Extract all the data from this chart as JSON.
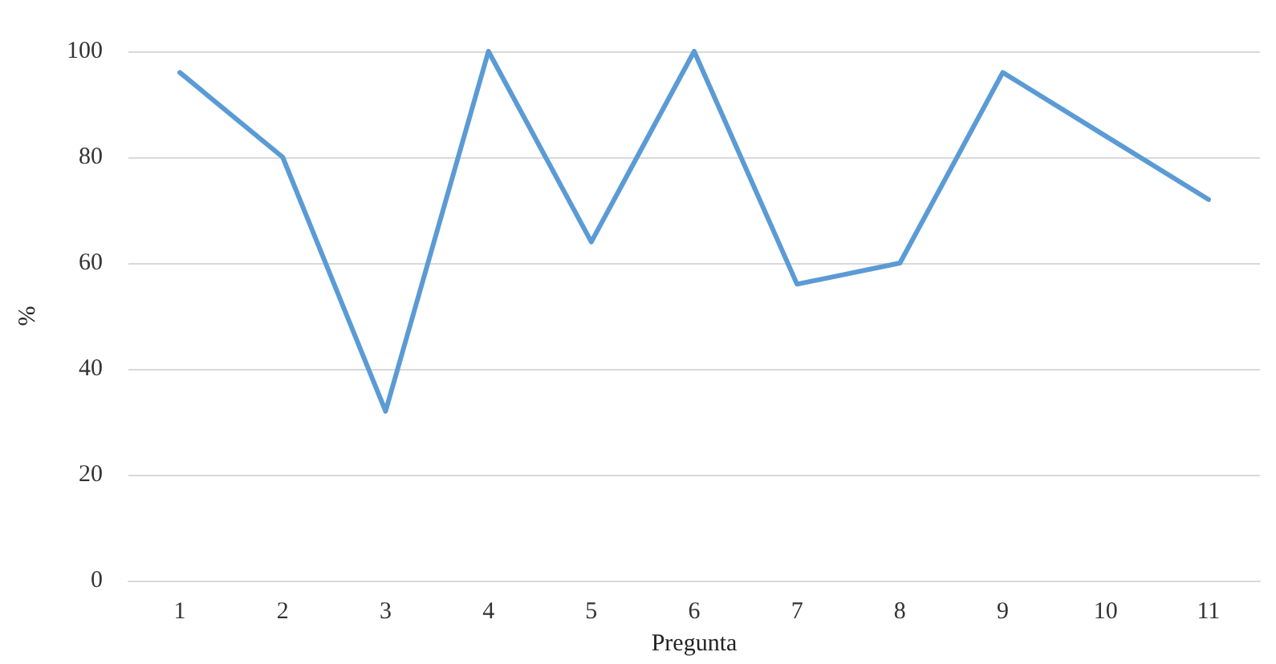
{
  "chart_data": {
    "type": "line",
    "xlabel": "Pregunta",
    "ylabel": "%",
    "categories": [
      "1",
      "2",
      "3",
      "4",
      "5",
      "6",
      "7",
      "8",
      "9",
      "10",
      "11"
    ],
    "series": [
      {
        "color": "#5b9bd5",
        "values": [
          96,
          80,
          32,
          100,
          64,
          100,
          56,
          60,
          96,
          84,
          72
        ]
      }
    ],
    "ylim": [
      0,
      100
    ],
    "yticks": [
      0,
      20,
      40,
      60,
      80,
      100
    ],
    "grid": "y",
    "marker": "none",
    "line_style": "solid"
  }
}
